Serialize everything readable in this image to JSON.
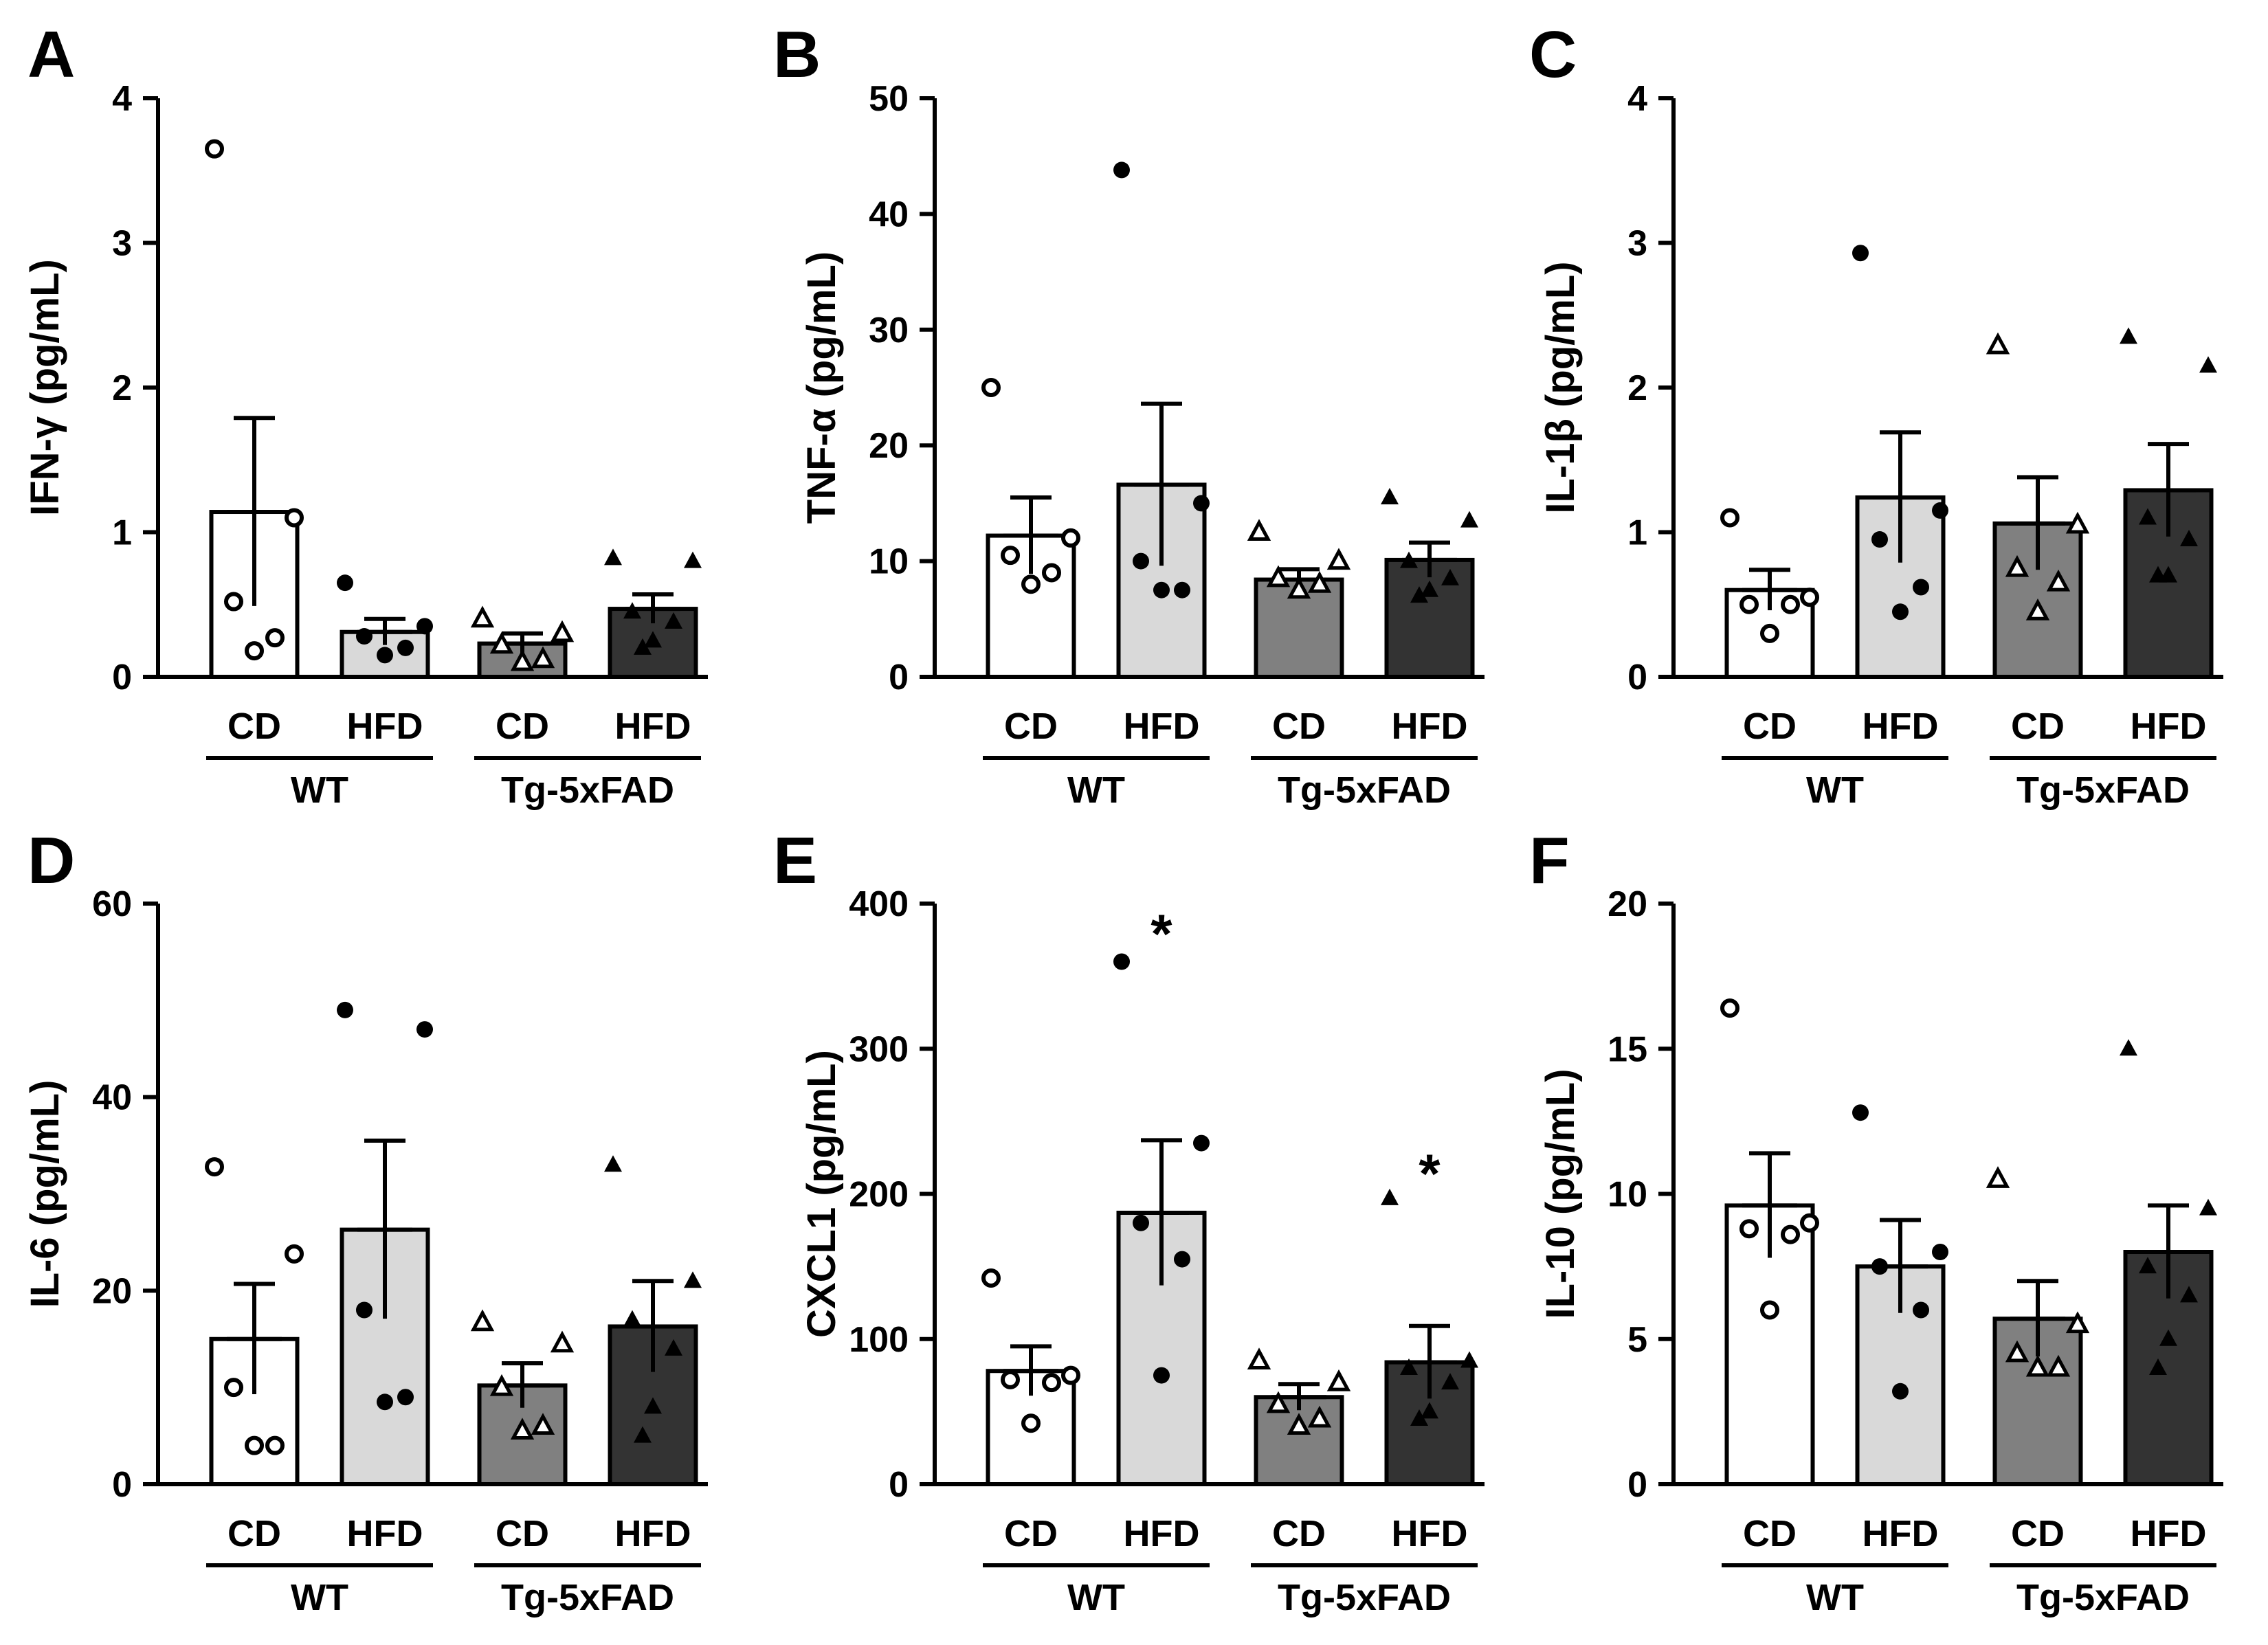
{
  "chart_data": [
    {
      "panel": "A",
      "type": "bar",
      "ylabel": "IFN-γ (pg/mL)",
      "ylim": [
        0,
        4
      ],
      "yticks": [
        0,
        1,
        2,
        3,
        4
      ],
      "yticklabels": [
        "0",
        "1",
        "2",
        "3",
        "4"
      ],
      "bars": [
        {
          "diet": "CD",
          "genotype": "WT",
          "mean": 1.14,
          "sem": 0.65,
          "points": [
            3.65,
            1.1,
            0.52,
            0.27,
            0.18
          ]
        },
        {
          "diet": "HFD",
          "genotype": "WT",
          "mean": 0.31,
          "sem": 0.09,
          "points": [
            0.65,
            0.35,
            0.28,
            0.2,
            0.15
          ]
        },
        {
          "diet": "CD",
          "genotype": "Tg-5xFAD",
          "mean": 0.23,
          "sem": 0.07,
          "points": [
            0.4,
            0.3,
            0.22,
            0.12,
            0.1
          ]
        },
        {
          "diet": "HFD",
          "genotype": "Tg-5xFAD",
          "mean": 0.47,
          "sem": 0.1,
          "points": [
            0.82,
            0.8,
            0.45,
            0.38,
            0.25,
            0.2
          ]
        }
      ],
      "stars": []
    },
    {
      "panel": "B",
      "type": "bar",
      "ylabel": "TNF-α (pg/mL)",
      "ylim": [
        0,
        50
      ],
      "yticks": [
        0,
        10,
        20,
        30,
        40,
        50
      ],
      "yticklabels": [
        "0",
        "10",
        "20",
        "30",
        "40",
        "50"
      ],
      "bars": [
        {
          "diet": "CD",
          "genotype": "WT",
          "mean": 12.2,
          "sem": 3.3,
          "points": [
            25,
            12,
            10.5,
            9,
            8
          ]
        },
        {
          "diet": "HFD",
          "genotype": "WT",
          "mean": 16.6,
          "sem": 7.0,
          "points": [
            43.8,
            15,
            10,
            7.5,
            7.5
          ]
        },
        {
          "diet": "CD",
          "genotype": "Tg-5xFAD",
          "mean": 8.4,
          "sem": 0.9,
          "points": [
            12.5,
            10,
            8.5,
            8,
            7.5
          ]
        },
        {
          "diet": "HFD",
          "genotype": "Tg-5xFAD",
          "mean": 10.1,
          "sem": 1.5,
          "points": [
            15.5,
            13.5,
            10,
            8.5,
            7.5,
            7
          ]
        }
      ],
      "stars": []
    },
    {
      "panel": "C",
      "type": "bar",
      "ylabel": "IL-1β (pg/mL)",
      "ylim": [
        0,
        4
      ],
      "yticks": [
        0,
        1,
        2,
        3,
        4
      ],
      "yticklabels": [
        "0",
        "1",
        "2",
        "3",
        "4"
      ],
      "bars": [
        {
          "diet": "CD",
          "genotype": "WT",
          "mean": 0.6,
          "sem": 0.14,
          "points": [
            1.1,
            0.55,
            0.5,
            0.5,
            0.3
          ]
        },
        {
          "diet": "HFD",
          "genotype": "WT",
          "mean": 1.24,
          "sem": 0.45,
          "points": [
            2.93,
            1.15,
            0.95,
            0.62,
            0.45
          ]
        },
        {
          "diet": "CD",
          "genotype": "Tg-5xFAD",
          "mean": 1.06,
          "sem": 0.32,
          "points": [
            2.29,
            1.05,
            0.75,
            0.65,
            0.45
          ]
        },
        {
          "diet": "HFD",
          "genotype": "Tg-5xFAD",
          "mean": 1.29,
          "sem": 0.32,
          "points": [
            2.35,
            2.15,
            1.1,
            0.95,
            0.7,
            0.7
          ]
        }
      ],
      "stars": []
    },
    {
      "panel": "D",
      "type": "bar",
      "ylabel": "IL-6 (pg/mL)",
      "ylim": [
        0,
        60
      ],
      "yticks": [
        0,
        20,
        40,
        60
      ],
      "yticklabels": [
        "0",
        "20",
        "40",
        "60"
      ],
      "bars": [
        {
          "diet": "CD",
          "genotype": "WT",
          "mean": 15.0,
          "sem": 5.7,
          "points": [
            32.8,
            23.8,
            10,
            4,
            4
          ]
        },
        {
          "diet": "HFD",
          "genotype": "WT",
          "mean": 26.3,
          "sem": 9.2,
          "points": [
            49,
            47,
            18,
            9,
            8.5
          ]
        },
        {
          "diet": "CD",
          "genotype": "Tg-5xFAD",
          "mean": 10.2,
          "sem": 2.3,
          "points": [
            16.7,
            14.5,
            10,
            6,
            5.5
          ]
        },
        {
          "diet": "HFD",
          "genotype": "Tg-5xFAD",
          "mean": 16.3,
          "sem": 4.7,
          "points": [
            33,
            21,
            17,
            14,
            8,
            5
          ]
        }
      ],
      "stars": []
    },
    {
      "panel": "E",
      "type": "bar",
      "ylabel": "CXCL1 (pg/mL)",
      "ylim": [
        0,
        400
      ],
      "yticks": [
        0,
        100,
        200,
        300,
        400
      ],
      "yticklabels": [
        "0",
        "100",
        "200",
        "300",
        "400"
      ],
      "bars": [
        {
          "diet": "CD",
          "genotype": "WT",
          "mean": 78,
          "sem": 17,
          "points": [
            142,
            75,
            72,
            70,
            42
          ]
        },
        {
          "diet": "HFD",
          "genotype": "WT",
          "mean": 187,
          "sem": 50,
          "points": [
            360,
            235,
            180,
            155,
            75
          ]
        },
        {
          "diet": "CD",
          "genotype": "Tg-5xFAD",
          "mean": 60,
          "sem": 9,
          "points": [
            85,
            70,
            55,
            45,
            40
          ]
        },
        {
          "diet": "HFD",
          "genotype": "Tg-5xFAD",
          "mean": 84,
          "sem": 25,
          "points": [
            197,
            85,
            80,
            70,
            50,
            45
          ]
        }
      ],
      "stars": [
        {
          "label": "*",
          "bar": 1,
          "value": 385
        },
        {
          "label": "*",
          "bar": 3,
          "value": 220
        }
      ]
    },
    {
      "panel": "F",
      "type": "bar",
      "ylabel": "IL-10 (pg/mL)",
      "ylim": [
        0,
        20
      ],
      "yticks": [
        0,
        5,
        10,
        15,
        20
      ],
      "yticklabels": [
        "0",
        "5",
        "10",
        "15",
        "20"
      ],
      "bars": [
        {
          "diet": "CD",
          "genotype": "WT",
          "mean": 9.6,
          "sem": 1.8,
          "points": [
            16.4,
            9,
            8.8,
            8.6,
            6
          ]
        },
        {
          "diet": "HFD",
          "genotype": "WT",
          "mean": 7.5,
          "sem": 1.6,
          "points": [
            12.8,
            8,
            7.5,
            6,
            3.2
          ]
        },
        {
          "diet": "CD",
          "genotype": "Tg-5xFAD",
          "mean": 5.7,
          "sem": 1.3,
          "points": [
            10.5,
            5.5,
            4.5,
            4,
            4
          ]
        },
        {
          "diet": "HFD",
          "genotype": "Tg-5xFAD",
          "mean": 8.0,
          "sem": 1.6,
          "points": [
            15,
            9.5,
            7.5,
            6.5,
            5,
            4
          ]
        }
      ],
      "stars": []
    }
  ],
  "group_colors": {
    "CD-WT": "#ffffff",
    "HFD-WT": "#d9d9d9",
    "CD-Tg-5xFAD": "#808080",
    "HFD-Tg-5xFAD": "#333333"
  },
  "marker_styles": [
    "open-circle",
    "filled-circle",
    "open-triangle",
    "filled-triangle"
  ]
}
